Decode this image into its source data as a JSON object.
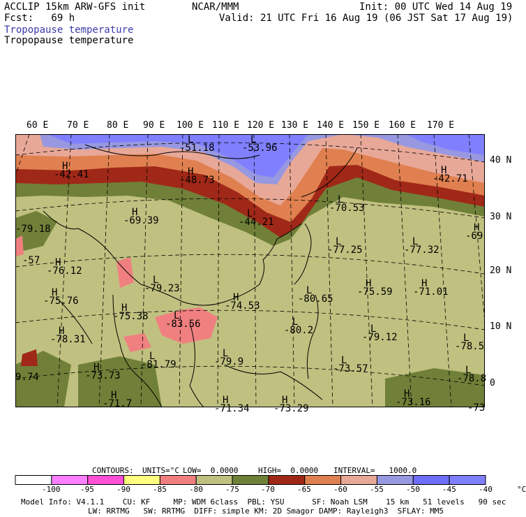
{
  "header": {
    "left1": "ACCLIP 15km ARW-GFS init",
    "left2": "Fcst:   69 h",
    "center": "NCAR/MMM",
    "right1": "Init: 00 UTC Wed 14 Aug 19",
    "right2": "Valid: 21 UTC Fri 16 Aug 19 (06 JST Sat 17 Aug 19)",
    "title_blue": "Tropopause temperature",
    "title_black": "Tropopause temperature"
  },
  "map": {
    "lon_labels": [
      "60 E",
      "70 E",
      "80 E",
      "90 E",
      "100 E",
      "110 E",
      "120 E",
      "130 E",
      "140 E",
      "150 E",
      "160 E",
      "170 E"
    ],
    "lat_labels": [
      "40 N",
      "30 N",
      "20 N",
      "10 N",
      "0"
    ],
    "pressure_centers": [
      {
        "type": "L",
        "value": "-51.18"
      },
      {
        "type": "L",
        "value": "-53.96"
      },
      {
        "type": "H",
        "value": "-42.41"
      },
      {
        "type": "H",
        "value": "-48.73"
      },
      {
        "type": "H",
        "value": "-42.71"
      },
      {
        "type": "L",
        "value": "-44.21"
      },
      {
        "type": "L",
        "value": "-70.53"
      },
      {
        "type": "H",
        "value": "-69.39"
      },
      {
        "type": "",
        "value": "-79.18"
      },
      {
        "type": "H",
        "value": "-69"
      },
      {
        "type": "L",
        "value": "-77.25"
      },
      {
        "type": "L",
        "value": "-77.32"
      },
      {
        "type": "H",
        "value": "-76.12"
      },
      {
        "type": "",
        "value": "-57"
      },
      {
        "type": "L",
        "value": "-79.23"
      },
      {
        "type": "H",
        "value": "-75.76"
      },
      {
        "type": "H",
        "value": "-74.53"
      },
      {
        "type": "L",
        "value": "-80.65"
      },
      {
        "type": "H",
        "value": "-75.59"
      },
      {
        "type": "H",
        "value": "-71.01"
      },
      {
        "type": "H",
        "value": "-75.38"
      },
      {
        "type": "L",
        "value": "-83.56"
      },
      {
        "type": "L",
        "value": "-80.2"
      },
      {
        "type": "L",
        "value": "-79.12"
      },
      {
        "type": "H",
        "value": "-78.31"
      },
      {
        "type": "L",
        "value": "-78.5"
      },
      {
        "type": "L",
        "value": "-81.79"
      },
      {
        "type": "L",
        "value": "-79.9"
      },
      {
        "type": "L",
        "value": "-73.57"
      },
      {
        "type": "H",
        "value": "-73.73"
      },
      {
        "type": "",
        "value": "9.74"
      },
      {
        "type": "L",
        "value": "-78.8"
      },
      {
        "type": "H",
        "value": "-71.7"
      },
      {
        "type": "H",
        "value": "-71.34"
      },
      {
        "type": "H",
        "value": "-73.29"
      },
      {
        "type": "H",
        "value": "-73.16"
      },
      {
        "type": "",
        "value": "-73"
      }
    ]
  },
  "colorbar": {
    "header": {
      "contours": "CONTOURS:",
      "units": "UNITS=°C",
      "low": "LOW=  0.0000",
      "high": "HIGH=  0.0000",
      "interval": "INTERVAL=   1000.0"
    },
    "colors": [
      "#ffffff",
      "#ff80ff",
      "#ff50d8",
      "#ffff80",
      "#f08080",
      "#c0c080",
      "#708038",
      "#a02818",
      "#e08050",
      "#e8a898",
      "#9898e0",
      "#6e6ef8",
      "#8080ff"
    ],
    "labels": [
      "-100",
      "-95",
      "-90",
      "-85",
      "-80",
      "-75",
      "-70",
      "-65",
      "-60",
      "-55",
      "-50",
      "-45",
      "-40",
      "°C"
    ]
  },
  "footer": {
    "line1": "Model Info: V4.1.1    CU: KF     MP: WDM 6class  PBL: YSU      SF: Noah LSM    15 km   51 levels   90 sec",
    "line2": "LW: RRTMG   SW: RRTMG  DIFF: simple KM: 2D Smagor DAMP: Rayleigh3  SFLAY: MM5"
  },
  "colors": {
    "field_light": "#c0c080",
    "field_dark": "#708038",
    "field_red": "#a02818",
    "field_orange": "#e08050",
    "field_pink": "#e8a898",
    "field_blue": "#8080ff",
    "field_lavender": "#9898e0",
    "field_salmon": "#f08080"
  }
}
